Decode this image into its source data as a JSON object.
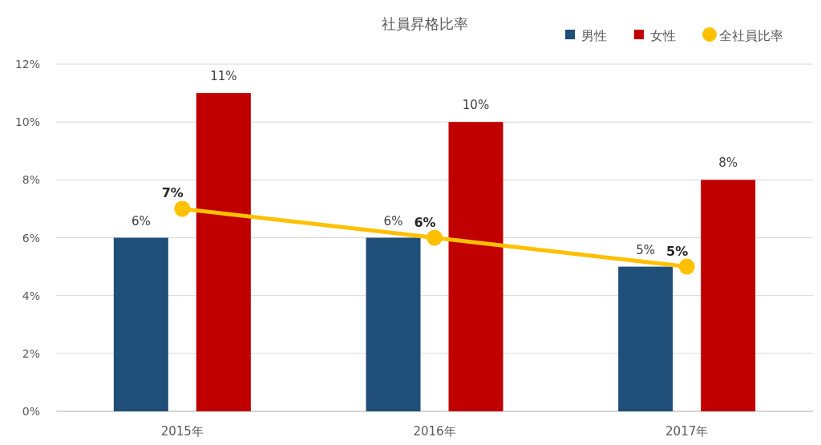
{
  "chart_data": {
    "type": "bar",
    "title": "社員昇格比率",
    "categories": [
      "2015年",
      "2016年",
      "2017年"
    ],
    "series": [
      {
        "name": "男性",
        "color": "#1f4e79",
        "values": [
          6,
          6,
          5
        ],
        "value_labels": [
          "6%",
          "6%",
          "5%"
        ]
      },
      {
        "name": "女性",
        "color": "#c00000",
        "values": [
          11,
          10,
          8
        ],
        "value_labels": [
          "11%",
          "10%",
          "8%"
        ]
      },
      {
        "name": "全社員比率",
        "type": "line",
        "color": "#ffc000",
        "values": [
          7,
          6,
          5
        ],
        "value_labels": [
          "7%",
          "6%",
          "5%"
        ],
        "marker": "circle"
      }
    ],
    "ylim": [
      0,
      12
    ],
    "yticks": [
      {
        "value": 0,
        "label": "0%"
      },
      {
        "value": 2,
        "label": "2%"
      },
      {
        "value": 4,
        "label": "4%"
      },
      {
        "value": 6,
        "label": "6%"
      },
      {
        "value": 8,
        "label": "8%"
      },
      {
        "value": 10,
        "label": "10%"
      },
      {
        "value": 12,
        "label": "12%"
      }
    ],
    "grid": "y",
    "legend": "top right"
  }
}
